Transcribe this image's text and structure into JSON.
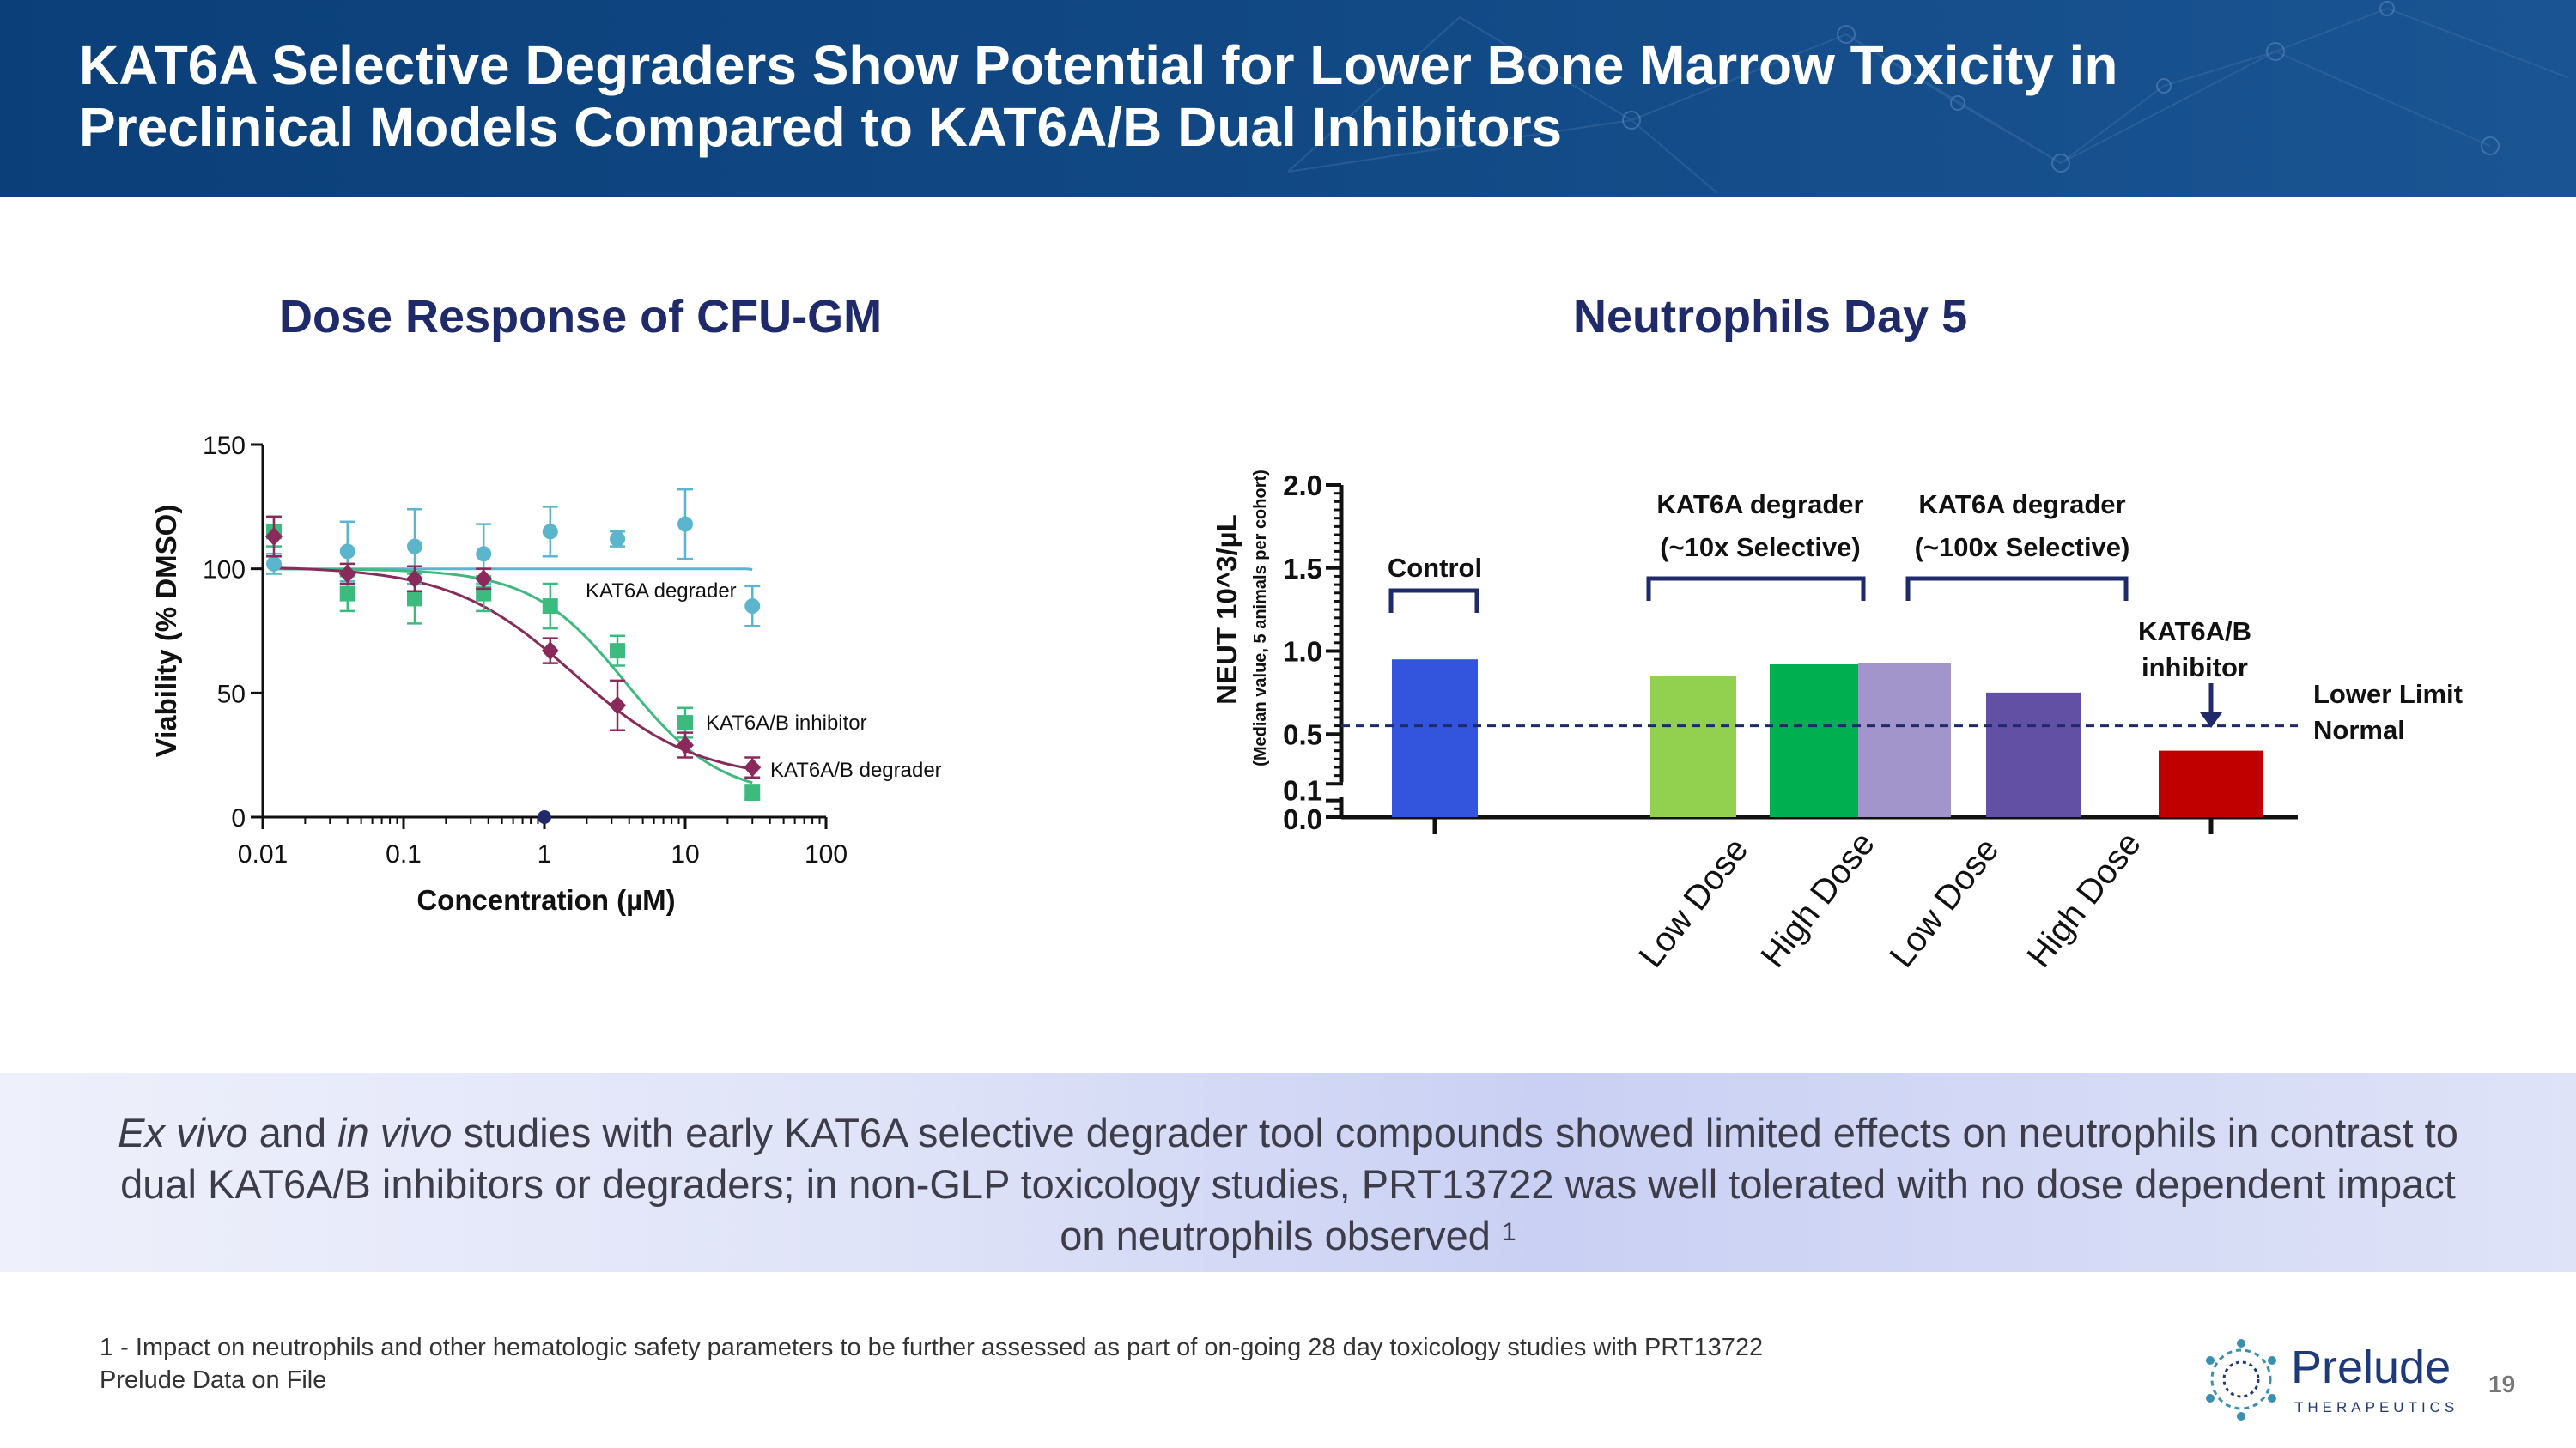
{
  "title": {
    "line1": "KAT6A Selective Degraders Show Potential for Lower Bone Marrow Toxicity in",
    "line2": "Preclinical Models Compared to KAT6A/B Dual Inhibitors"
  },
  "colors": {
    "header_bg": "#0b3f79",
    "subtitle": "#1f2a6b",
    "teal": "#5bb5cc",
    "green": "#3dbb7f",
    "maroon": "#8a2a5a"
  },
  "chart_data": [
    {
      "type": "scatter",
      "title": "Dose Response of CFU-GM",
      "xlabel": "Concentration (µM)",
      "ylabel": "Viability (% DMSO)",
      "xscale": "log",
      "xlim": [
        0.01,
        100
      ],
      "ylim": [
        0,
        150
      ],
      "x_ticks": [
        0.01,
        0.1,
        1,
        10,
        100
      ],
      "x_tick_labels": [
        "0.01",
        "0.1",
        "1",
        "10",
        "100"
      ],
      "y_ticks": [
        0,
        50,
        100,
        150
      ],
      "y_tick_labels": [
        "0",
        "50",
        "100",
        "150"
      ],
      "series": [
        {
          "name": "KAT6A degrader",
          "color": "#5bb5cc",
          "marker": "circle",
          "x": [
            0.012,
            0.04,
            0.12,
            0.37,
            1.1,
            3.3,
            10,
            30
          ],
          "y": [
            102,
            107,
            109,
            106,
            115,
            112,
            118,
            85
          ],
          "err": [
            4,
            12,
            15,
            12,
            10,
            3,
            14,
            8
          ],
          "fit": {
            "top": 100,
            "bottom": 0,
            "ec50": 40,
            "hill": 20
          }
        },
        {
          "name": "KAT6A/B inhibitor",
          "color": "#3dbb7f",
          "marker": "square",
          "x": [
            0.012,
            0.04,
            0.12,
            0.37,
            1.1,
            3.3,
            10,
            30
          ],
          "y": [
            115,
            90,
            88,
            90,
            85,
            67,
            38,
            10
          ],
          "err": [
            6,
            7,
            10,
            7,
            9,
            6,
            6,
            3
          ],
          "fit": {
            "top": 100,
            "bottom": 8,
            "ec50": 3.8,
            "hill": 1.3
          }
        },
        {
          "name": "KAT6A/B degrader",
          "color": "#8a2a5a",
          "marker": "diamond",
          "x": [
            0.012,
            0.04,
            0.12,
            0.37,
            1.1,
            3.3,
            10,
            30
          ],
          "y": [
            113,
            98,
            96,
            96,
            67,
            45,
            29,
            20
          ],
          "err": [
            8,
            4,
            5,
            4,
            5,
            10,
            5,
            4
          ],
          "fit": {
            "top": 101,
            "bottom": 15,
            "ec50": 1.6,
            "hill": 1.0
          }
        }
      ]
    },
    {
      "type": "bar",
      "title": "Neutrophils Day 5",
      "ylabel": "NEUT 10^3/µL",
      "ylabel_sub": "(Median value, 5 animals per cohort)",
      "ylim": [
        0,
        2.0
      ],
      "y_tick_labels": [
        "0.0",
        "0.1",
        "0.5",
        "1.0",
        "1.5",
        "2.0"
      ],
      "categories": [
        "Control",
        "Low Dose",
        "High Dose",
        "Low Dose",
        "High Dose",
        "KAT6A/B inhibitor"
      ],
      "x_tick_labels": [
        "Low Dose",
        "High Dose",
        "Low Dose",
        "High Dose"
      ],
      "values": [
        0.95,
        0.85,
        0.92,
        0.93,
        0.75,
        0.4
      ],
      "bar_colors": [
        "#3355dd",
        "#92d050",
        "#00b050",
        "#a195cc",
        "#6150a4",
        "#c00000"
      ],
      "group_labels": {
        "control": "Control",
        "low_sel_1": "KAT6A degrader",
        "low_sel_2": "(~10x Selective)",
        "high_sel_1": "KAT6A degrader",
        "high_sel_2": "(~100x Selective)",
        "inhibitor_1": "KAT6A/B",
        "inhibitor_2": "inhibitor"
      },
      "reference_line": {
        "value": 0.55,
        "label_1": "Lower Limit",
        "label_2": "Normal"
      }
    }
  ],
  "band": {
    "p1_italic": "Ex vivo",
    "p2": " and ",
    "p3_italic": "in vivo",
    "p4": " studies with early KAT6A selective degrader tool compounds showed limited effects on neutrophils in contrast to dual KAT6A/B inhibitors or degraders; in non-GLP toxicology studies, PRT13722 was well tolerated with no dose dependent impact on neutrophils observed ",
    "sup": "1"
  },
  "footnote": {
    "line1": "1 - Impact on neutrophils and other hematologic safety parameters to be further assessed as part of on-going 28 day toxicology studies with PRT13722",
    "line2": "Prelude Data on File"
  },
  "logo": {
    "name": "Prelude",
    "sub": "THERAPEUTICS"
  },
  "page_number": "19"
}
